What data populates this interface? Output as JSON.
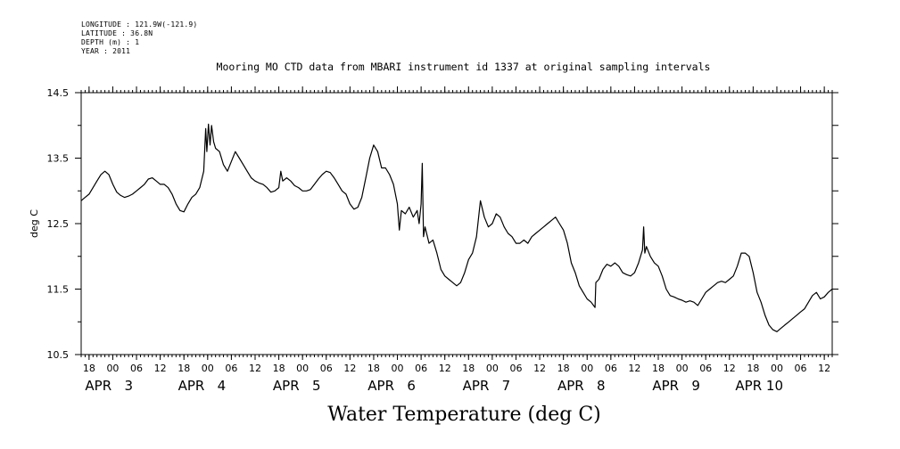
{
  "header": {
    "longitude": "LONGITUDE : 121.9W(-121.9)",
    "latitude": "LATITUDE : 36.8N",
    "depth": "DEPTH (m) : 1",
    "year": "YEAR : 2011"
  },
  "chart_data": {
    "type": "line",
    "title": "Mooring MO CTD data from MBARI instrument id 1337 at original sampling intervals",
    "xlabel": "Water Temperature (deg C)",
    "ylabel": "deg C",
    "ylim": [
      10.5,
      14.5
    ],
    "yticks": [
      "14.5",
      "13.5",
      "12.5",
      "11.5",
      "10.5"
    ],
    "x_unit": "hours since APR 3 00:00 (2011)",
    "xlim": [
      -8,
      182
    ],
    "hour_ticks": [
      {
        "h": -6,
        "label": "18"
      },
      {
        "h": 0,
        "label": "00"
      },
      {
        "h": 6,
        "label": "06"
      },
      {
        "h": 12,
        "label": "12"
      },
      {
        "h": 18,
        "label": "18"
      },
      {
        "h": 24,
        "label": "00"
      },
      {
        "h": 30,
        "label": "06"
      },
      {
        "h": 36,
        "label": "12"
      },
      {
        "h": 42,
        "label": "18"
      },
      {
        "h": 48,
        "label": "00"
      },
      {
        "h": 54,
        "label": "06"
      },
      {
        "h": 60,
        "label": "12"
      },
      {
        "h": 66,
        "label": "18"
      },
      {
        "h": 72,
        "label": "00"
      },
      {
        "h": 78,
        "label": "06"
      },
      {
        "h": 84,
        "label": "12"
      },
      {
        "h": 90,
        "label": "18"
      },
      {
        "h": 96,
        "label": "00"
      },
      {
        "h": 102,
        "label": "06"
      },
      {
        "h": 108,
        "label": "12"
      },
      {
        "h": 114,
        "label": "18"
      },
      {
        "h": 120,
        "label": "00"
      },
      {
        "h": 126,
        "label": "06"
      },
      {
        "h": 132,
        "label": "12"
      },
      {
        "h": 138,
        "label": "18"
      },
      {
        "h": 144,
        "label": "00"
      },
      {
        "h": 150,
        "label": "06"
      },
      {
        "h": 156,
        "label": "12"
      },
      {
        "h": 162,
        "label": "18"
      },
      {
        "h": 168,
        "label": "00"
      },
      {
        "h": 174,
        "label": "06"
      },
      {
        "h": 180,
        "label": "12"
      }
    ],
    "day_labels": [
      {
        "h": -7,
        "label": "APR   3"
      },
      {
        "h": 16.5,
        "label": "APR   4"
      },
      {
        "h": 40.5,
        "label": "APR   5"
      },
      {
        "h": 64.5,
        "label": "APR   6"
      },
      {
        "h": 88.5,
        "label": "APR   7"
      },
      {
        "h": 112.5,
        "label": "APR   8"
      },
      {
        "h": 136.5,
        "label": "APR   9"
      },
      {
        "h": 157.5,
        "label": "APR 10"
      }
    ],
    "series": [
      {
        "color": "#000000",
        "points": [
          [
            -8,
            12.85
          ],
          [
            -7,
            12.9
          ],
          [
            -6,
            12.95
          ],
          [
            -5,
            13.05
          ],
          [
            -4,
            13.15
          ],
          [
            -3,
            13.25
          ],
          [
            -2,
            13.3
          ],
          [
            -1,
            13.25
          ],
          [
            0,
            13.1
          ],
          [
            1,
            12.98
          ],
          [
            2,
            12.93
          ],
          [
            3,
            12.9
          ],
          [
            4,
            12.92
          ],
          [
            5,
            12.95
          ],
          [
            6,
            13.0
          ],
          [
            7,
            13.05
          ],
          [
            8,
            13.1
          ],
          [
            9,
            13.18
          ],
          [
            10,
            13.2
          ],
          [
            11,
            13.15
          ],
          [
            12,
            13.1
          ],
          [
            13,
            13.1
          ],
          [
            14,
            13.05
          ],
          [
            15,
            12.95
          ],
          [
            16,
            12.8
          ],
          [
            17,
            12.7
          ],
          [
            18,
            12.68
          ],
          [
            19,
            12.8
          ],
          [
            20,
            12.9
          ],
          [
            21,
            12.95
          ],
          [
            22,
            13.05
          ],
          [
            23,
            13.3
          ],
          [
            23.5,
            13.95
          ],
          [
            23.8,
            13.6
          ],
          [
            24.2,
            14.02
          ],
          [
            24.6,
            13.7
          ],
          [
            25,
            14.0
          ],
          [
            25.5,
            13.75
          ],
          [
            26,
            13.65
          ],
          [
            27,
            13.6
          ],
          [
            28,
            13.4
          ],
          [
            29,
            13.3
          ],
          [
            30,
            13.45
          ],
          [
            31,
            13.6
          ],
          [
            32,
            13.5
          ],
          [
            33,
            13.4
          ],
          [
            34,
            13.3
          ],
          [
            35,
            13.2
          ],
          [
            36,
            13.15
          ],
          [
            37,
            13.12
          ],
          [
            38,
            13.1
          ],
          [
            39,
            13.05
          ],
          [
            40,
            12.98
          ],
          [
            41,
            13.0
          ],
          [
            42,
            13.05
          ],
          [
            42.5,
            13.3
          ],
          [
            43,
            13.15
          ],
          [
            44,
            13.2
          ],
          [
            45,
            13.15
          ],
          [
            46,
            13.08
          ],
          [
            47,
            13.05
          ],
          [
            48,
            13.0
          ],
          [
            49,
            13.0
          ],
          [
            50,
            13.02
          ],
          [
            51,
            13.1
          ],
          [
            52,
            13.18
          ],
          [
            53,
            13.25
          ],
          [
            54,
            13.3
          ],
          [
            55,
            13.28
          ],
          [
            56,
            13.2
          ],
          [
            57,
            13.1
          ],
          [
            58,
            13.0
          ],
          [
            59,
            12.95
          ],
          [
            60,
            12.8
          ],
          [
            61,
            12.72
          ],
          [
            62,
            12.75
          ],
          [
            63,
            12.9
          ],
          [
            64,
            13.2
          ],
          [
            65,
            13.5
          ],
          [
            66,
            13.7
          ],
          [
            67,
            13.6
          ],
          [
            68,
            13.35
          ],
          [
            69,
            13.35
          ],
          [
            70,
            13.25
          ],
          [
            71,
            13.1
          ],
          [
            72,
            12.8
          ],
          [
            72.5,
            12.4
          ],
          [
            73,
            12.7
          ],
          [
            74,
            12.65
          ],
          [
            75,
            12.75
          ],
          [
            76,
            12.6
          ],
          [
            77,
            12.7
          ],
          [
            77.5,
            12.5
          ],
          [
            78,
            12.8
          ],
          [
            78.3,
            13.42
          ],
          [
            78.6,
            12.3
          ],
          [
            79,
            12.45
          ],
          [
            80,
            12.2
          ],
          [
            81,
            12.25
          ],
          [
            82,
            12.05
          ],
          [
            83,
            11.8
          ],
          [
            84,
            11.7
          ],
          [
            85,
            11.65
          ],
          [
            86,
            11.6
          ],
          [
            87,
            11.55
          ],
          [
            88,
            11.6
          ],
          [
            89,
            11.75
          ],
          [
            90,
            11.95
          ],
          [
            91,
            12.05
          ],
          [
            92,
            12.3
          ],
          [
            93,
            12.85
          ],
          [
            94,
            12.6
          ],
          [
            95,
            12.45
          ],
          [
            96,
            12.5
          ],
          [
            97,
            12.65
          ],
          [
            98,
            12.6
          ],
          [
            99,
            12.45
          ],
          [
            100,
            12.35
          ],
          [
            101,
            12.3
          ],
          [
            102,
            12.2
          ],
          [
            103,
            12.2
          ],
          [
            104,
            12.25
          ],
          [
            105,
            12.2
          ],
          [
            106,
            12.3
          ],
          [
            107,
            12.35
          ],
          [
            108,
            12.4
          ],
          [
            109,
            12.45
          ],
          [
            110,
            12.5
          ],
          [
            111,
            12.55
          ],
          [
            112,
            12.6
          ],
          [
            113,
            12.5
          ],
          [
            114,
            12.4
          ],
          [
            115,
            12.2
          ],
          [
            116,
            11.9
          ],
          [
            117,
            11.75
          ],
          [
            118,
            11.55
          ],
          [
            119,
            11.45
          ],
          [
            120,
            11.35
          ],
          [
            121,
            11.3
          ],
          [
            122,
            11.22
          ],
          [
            122.2,
            11.6
          ],
          [
            123,
            11.65
          ],
          [
            124,
            11.8
          ],
          [
            125,
            11.88
          ],
          [
            126,
            11.85
          ],
          [
            127,
            11.9
          ],
          [
            128,
            11.85
          ],
          [
            129,
            11.75
          ],
          [
            130,
            11.72
          ],
          [
            131,
            11.7
          ],
          [
            132,
            11.75
          ],
          [
            133,
            11.9
          ],
          [
            134,
            12.1
          ],
          [
            134.3,
            12.45
          ],
          [
            134.6,
            12.05
          ],
          [
            135,
            12.15
          ],
          [
            136,
            12.0
          ],
          [
            137,
            11.9
          ],
          [
            138,
            11.85
          ],
          [
            139,
            11.7
          ],
          [
            140,
            11.5
          ],
          [
            141,
            11.4
          ],
          [
            142,
            11.38
          ],
          [
            143,
            11.35
          ],
          [
            144,
            11.33
          ],
          [
            145,
            11.3
          ],
          [
            146,
            11.32
          ],
          [
            147,
            11.3
          ],
          [
            148,
            11.25
          ],
          [
            149,
            11.35
          ],
          [
            150,
            11.45
          ],
          [
            151,
            11.5
          ],
          [
            152,
            11.55
          ],
          [
            153,
            11.6
          ],
          [
            154,
            11.62
          ],
          [
            155,
            11.6
          ],
          [
            156,
            11.65
          ],
          [
            157,
            11.7
          ],
          [
            158,
            11.85
          ],
          [
            159,
            12.05
          ],
          [
            160,
            12.05
          ],
          [
            161,
            12.0
          ],
          [
            162,
            11.75
          ],
          [
            163,
            11.45
          ],
          [
            164,
            11.3
          ],
          [
            165,
            11.1
          ],
          [
            166,
            10.95
          ],
          [
            167,
            10.88
          ],
          [
            168,
            10.85
          ],
          [
            169,
            10.9
          ],
          [
            170,
            10.95
          ],
          [
            171,
            11.0
          ],
          [
            172,
            11.05
          ],
          [
            173,
            11.1
          ],
          [
            174,
            11.15
          ],
          [
            175,
            11.2
          ],
          [
            176,
            11.3
          ],
          [
            177,
            11.4
          ],
          [
            178,
            11.45
          ],
          [
            179,
            11.35
          ],
          [
            180,
            11.38
          ],
          [
            181,
            11.45
          ],
          [
            182,
            11.5
          ]
        ]
      }
    ]
  }
}
